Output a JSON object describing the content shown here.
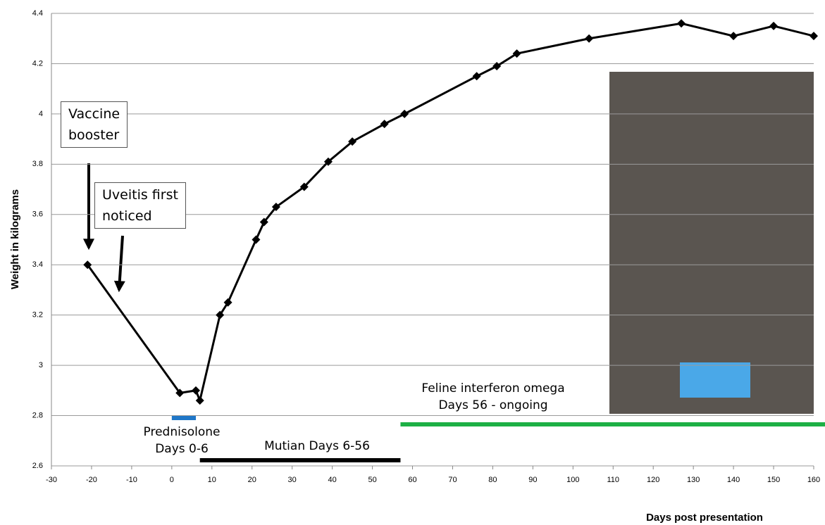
{
  "chart_data": {
    "type": "line",
    "y_label": "Weight in kilograms",
    "x_label": "Days post presentation",
    "xlim": [
      -30,
      160
    ],
    "xticks": [
      -30,
      -20,
      -10,
      0,
      10,
      20,
      30,
      40,
      50,
      60,
      70,
      80,
      90,
      100,
      110,
      120,
      130,
      140,
      150,
      160
    ],
    "ylim": [
      2.6,
      4.4
    ],
    "yticks": [
      2.6,
      2.8,
      3,
      3.2,
      3.4,
      3.6,
      3.8,
      4,
      4.2,
      4.4
    ],
    "grid": true,
    "series": [
      {
        "color": "#000000",
        "x": [
          -21,
          2,
          6,
          7,
          12,
          14,
          21,
          23,
          26,
          33,
          39,
          45,
          53,
          58,
          76,
          81,
          86,
          104,
          127,
          140,
          150,
          160
        ],
        "values": [
          3.4,
          2.89,
          2.9,
          2.86,
          3.2,
          3.25,
          3.5,
          3.57,
          3.63,
          3.71,
          3.81,
          3.89,
          3.96,
          4.0,
          4.15,
          4.19,
          4.24,
          4.3,
          4.36,
          4.31,
          4.35,
          4.31
        ]
      }
    ],
    "annotations": [
      "Vaccine\nbooster",
      "Uveitis first\nnoticed"
    ],
    "treatments": [
      {
        "label": "Prednisolone\nDays 0-6",
        "start": 0,
        "end": 6,
        "color": "#1f77c8"
      },
      {
        "label": "Mutian Days 6-56",
        "start": 7,
        "end": 57,
        "color": "#000000"
      },
      {
        "label": "Feline interferon omega\nDays 56 - ongoing",
        "start": 57,
        "end": 163,
        "color": "#1db045"
      }
    ]
  }
}
